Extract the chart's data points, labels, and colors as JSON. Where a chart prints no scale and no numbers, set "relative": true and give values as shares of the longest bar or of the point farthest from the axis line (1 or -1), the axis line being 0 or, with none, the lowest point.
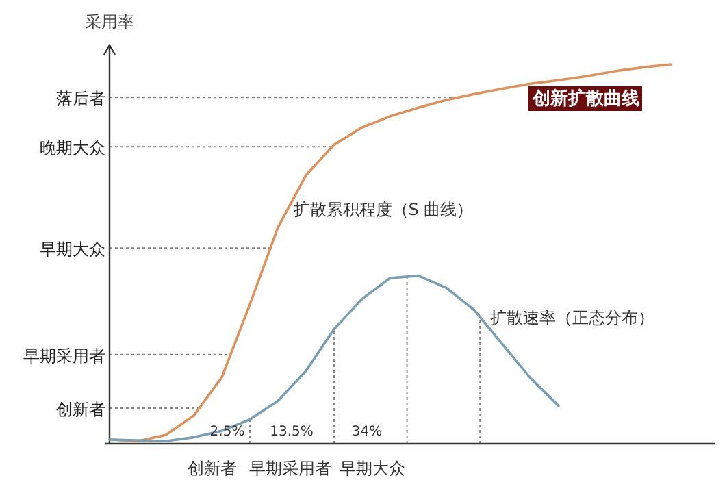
{
  "chart_data": {
    "type": "line",
    "relative": true,
    "title": "创新扩散曲线",
    "ylabel": "采用率",
    "categories": [
      null,
      null,
      null,
      null,
      null,
      null,
      null,
      null,
      null,
      null,
      null,
      null,
      null,
      null,
      null,
      null,
      null,
      null,
      null,
      null,
      null
    ],
    "series": [
      {
        "color": "#e0915a",
        "values": [
          0.011,
          0.007,
          0.023,
          0.074,
          0.175,
          0.367,
          0.57,
          0.708,
          0.788,
          0.834,
          0.863,
          0.886,
          0.906,
          0.922,
          0.936,
          0.949,
          0.958,
          0.969,
          0.982,
          0.992,
          1
        ]
      },
      {
        "color": "#7a9fb5",
        "values": [
          0.011,
          0.009,
          0.007,
          0.017,
          0.034,
          0.064,
          0.113,
          0.192,
          0.302,
          0.382,
          0.437,
          0.443,
          0.411,
          0.352,
          0.262,
          0.173,
          0.1,
          null,
          null,
          null,
          null
        ]
      }
    ],
    "ref_lines": [
      {
        "axis": "y",
        "value": 0.913,
        "label": "落后者",
        "line_style": "dotted"
      },
      {
        "axis": "y",
        "value": 0.783,
        "label": "晚期大众",
        "line_style": "dotted"
      },
      {
        "axis": "y",
        "value": 0.516,
        "label": "早期大众",
        "line_style": "dotted"
      },
      {
        "axis": "y",
        "value": 0.235,
        "label": "早期采用者",
        "line_style": "dotted"
      },
      {
        "axis": "y",
        "value": 0.094,
        "label": "创新者",
        "line_style": "dotted"
      }
    ],
    "annotations": [
      "扩散累积程度（S 曲线）",
      "扩散速率（正态分布）",
      "2.5%",
      "13.5%",
      "34%",
      "创新者",
      "早期采用者",
      "早期大众"
    ],
    "line_style": "solid"
  }
}
